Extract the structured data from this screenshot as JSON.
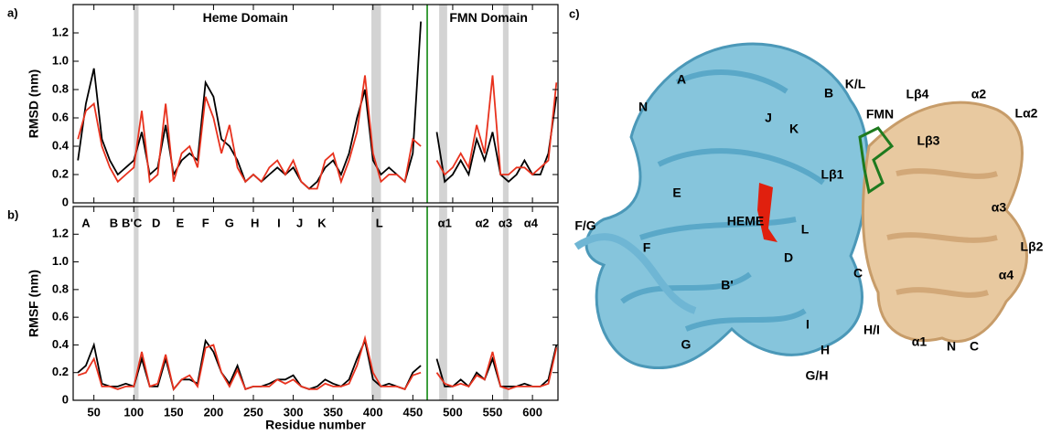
{
  "chart_data": [
    {
      "type": "line",
      "panel": "a)",
      "ylabel": "RMSD (nm)",
      "annotations": [
        {
          "text": "Heme Domain",
          "x": 240,
          "y": 1.3
        },
        {
          "text": "FMN Domain",
          "x": 545,
          "y": 1.3
        }
      ],
      "x": [
        30,
        40,
        50,
        60,
        70,
        80,
        90,
        100,
        110,
        120,
        130,
        140,
        150,
        160,
        170,
        180,
        190,
        200,
        210,
        220,
        230,
        240,
        250,
        260,
        270,
        280,
        290,
        300,
        310,
        320,
        330,
        340,
        350,
        360,
        370,
        380,
        390,
        400,
        410,
        420,
        430,
        440,
        450,
        460,
        465,
        480,
        490,
        500,
        510,
        520,
        530,
        540,
        550,
        560,
        570,
        580,
        590,
        600,
        610,
        620,
        630
      ],
      "series": [
        {
          "color": "#000000",
          "values": [
            0.3,
            0.7,
            0.95,
            0.45,
            0.3,
            0.2,
            0.25,
            0.3,
            0.5,
            0.2,
            0.25,
            0.55,
            0.2,
            0.3,
            0.35,
            0.3,
            0.85,
            0.75,
            0.45,
            0.4,
            0.3,
            0.15,
            0.2,
            0.15,
            0.2,
            0.25,
            0.2,
            0.25,
            0.15,
            0.1,
            0.15,
            0.25,
            0.3,
            0.2,
            0.35,
            0.6,
            0.8,
            0.3,
            0.2,
            0.25,
            0.2,
            0.15,
            0.35,
            1.28,
            null,
            0.5,
            0.15,
            0.2,
            0.3,
            0.2,
            0.45,
            0.3,
            0.5,
            0.2,
            0.15,
            0.2,
            0.3,
            0.2,
            0.2,
            0.35,
            0.75
          ]
        },
        {
          "color": "#e8321e",
          "values": [
            0.45,
            0.65,
            0.7,
            0.4,
            0.25,
            0.15,
            0.2,
            0.25,
            0.65,
            0.15,
            0.2,
            0.7,
            0.15,
            0.35,
            0.4,
            0.25,
            0.75,
            0.6,
            0.35,
            0.55,
            0.25,
            0.15,
            0.2,
            0.15,
            0.25,
            0.3,
            0.2,
            0.3,
            0.15,
            0.1,
            0.1,
            0.3,
            0.35,
            0.15,
            0.3,
            0.5,
            0.9,
            0.35,
            0.15,
            0.2,
            0.2,
            0.15,
            0.45,
            0.4,
            null,
            0.3,
            0.2,
            0.25,
            0.35,
            0.25,
            0.55,
            0.35,
            0.9,
            0.2,
            0.2,
            0.25,
            0.25,
            0.2,
            0.25,
            0.3,
            0.85
          ]
        }
      ],
      "shaded": [
        [
          100,
          106
        ],
        [
          398,
          410
        ],
        [
          483,
          493
        ],
        [
          563,
          570
        ]
      ],
      "divider": 468,
      "divider_color": "#008000",
      "xlim": [
        24,
        632
      ],
      "xticks": [
        50,
        100,
        150,
        200,
        250,
        300,
        350,
        400,
        450,
        500,
        550,
        600
      ],
      "ylim": [
        0,
        1.4
      ],
      "yticks": [
        0,
        0.2,
        0.4,
        0.6,
        0.8,
        {
          "value": 1,
          "label": "1.0"
        },
        1.2
      ]
    },
    {
      "type": "line",
      "panel": "b)",
      "ylabel": "RMSF (nm)",
      "xlabel": "Residue number",
      "ss_labels": [
        {
          "text": "A",
          "x": 40
        },
        {
          "text": "B",
          "x": 75
        },
        {
          "text": "B'",
          "x": 92
        },
        {
          "text": "C",
          "x": 105
        },
        {
          "text": "D",
          "x": 128
        },
        {
          "text": "E",
          "x": 158
        },
        {
          "text": "F",
          "x": 190
        },
        {
          "text": "G",
          "x": 220
        },
        {
          "text": "H",
          "x": 252
        },
        {
          "text": "I",
          "x": 282
        },
        {
          "text": "J",
          "x": 308
        },
        {
          "text": "K",
          "x": 336
        },
        {
          "text": "L",
          "x": 408
        },
        {
          "text": "α1",
          "x": 490
        },
        {
          "text": "α2",
          "x": 537
        },
        {
          "text": "α3",
          "x": 566
        },
        {
          "text": "α4",
          "x": 598
        }
      ],
      "x": [
        30,
        40,
        50,
        60,
        70,
        80,
        90,
        100,
        110,
        120,
        130,
        140,
        150,
        160,
        170,
        180,
        190,
        200,
        210,
        220,
        230,
        240,
        250,
        260,
        270,
        280,
        290,
        300,
        310,
        320,
        330,
        340,
        350,
        360,
        370,
        380,
        390,
        400,
        410,
        420,
        430,
        440,
        450,
        460,
        465,
        480,
        490,
        500,
        510,
        520,
        530,
        540,
        550,
        560,
        570,
        580,
        590,
        600,
        610,
        620,
        630
      ],
      "series": [
        {
          "color": "#000000",
          "values": [
            0.2,
            0.25,
            0.4,
            0.12,
            0.1,
            0.1,
            0.12,
            0.1,
            0.3,
            0.1,
            0.1,
            0.3,
            0.08,
            0.15,
            0.15,
            0.12,
            0.43,
            0.35,
            0.2,
            0.12,
            0.25,
            0.08,
            0.1,
            0.1,
            0.12,
            0.15,
            0.15,
            0.18,
            0.1,
            0.08,
            0.1,
            0.15,
            0.12,
            0.1,
            0.15,
            0.3,
            0.43,
            0.15,
            0.1,
            0.12,
            0.1,
            0.08,
            0.2,
            0.25,
            null,
            0.3,
            0.1,
            0.1,
            0.15,
            0.1,
            0.2,
            0.15,
            0.3,
            0.1,
            0.1,
            0.1,
            0.12,
            0.1,
            0.1,
            0.15,
            0.4
          ]
        },
        {
          "color": "#e8321e",
          "values": [
            0.18,
            0.2,
            0.3,
            0.1,
            0.1,
            0.08,
            0.1,
            0.1,
            0.35,
            0.1,
            0.12,
            0.33,
            0.08,
            0.15,
            0.18,
            0.1,
            0.38,
            0.4,
            0.2,
            0.1,
            0.22,
            0.08,
            0.1,
            0.1,
            0.1,
            0.15,
            0.12,
            0.15,
            0.1,
            0.08,
            0.08,
            0.12,
            0.1,
            0.1,
            0.12,
            0.25,
            0.45,
            0.2,
            0.1,
            0.1,
            0.1,
            0.08,
            0.18,
            0.2,
            null,
            0.2,
            0.12,
            0.1,
            0.12,
            0.1,
            0.18,
            0.15,
            0.35,
            0.1,
            0.08,
            0.1,
            0.1,
            0.1,
            0.1,
            0.12,
            0.38
          ]
        }
      ],
      "shaded": [
        [
          100,
          106
        ],
        [
          398,
          410
        ],
        [
          483,
          493
        ],
        [
          563,
          570
        ]
      ],
      "divider": 468,
      "divider_color": "#008000",
      "xlim": [
        24,
        632
      ],
      "xticks": [
        50,
        100,
        150,
        200,
        250,
        300,
        350,
        400,
        450,
        500,
        550,
        600
      ],
      "ylim": [
        0,
        1.4
      ],
      "yticks": [
        0,
        0.2,
        0.4,
        0.6,
        0.8,
        {
          "value": 1,
          "label": "1.0"
        },
        1.2
      ]
    }
  ],
  "structure": {
    "panel": "c)",
    "labels": [
      "A",
      "N",
      "B",
      "K/L",
      "J",
      "K",
      "FMN",
      "Lβ4",
      "α2",
      "Lα2",
      "Lβ3",
      "Lβ1",
      "E",
      "HEME",
      "L",
      "F/G",
      "F",
      "D",
      "B'",
      "C",
      "α3",
      "Lβ2",
      "α4",
      "G",
      "I",
      "H/I",
      "H",
      "G/H",
      "α1",
      "N",
      "C"
    ]
  }
}
